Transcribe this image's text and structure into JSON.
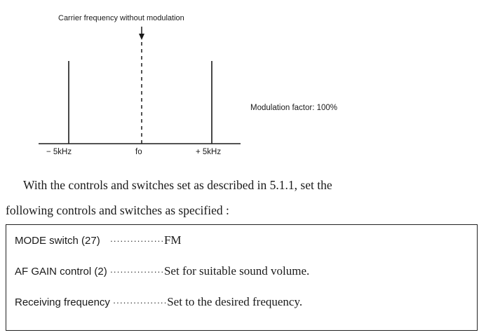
{
  "figure": {
    "carrier_label": "Carrier frequency without modulation",
    "modulation_label": "Modulation factor: 100%",
    "ticks": {
      "minus": "− 5kHz",
      "center": "fo",
      "plus": "+ 5kHz"
    }
  },
  "paragraph": {
    "line1": "With the controls and switches set as described in 5.1.1, set the",
    "line2": "following controls and switches as specified :"
  },
  "settings": [
    {
      "item": "MODE switch (27)",
      "leader": "················",
      "value": "FM"
    },
    {
      "item": "AF GAIN control (2)",
      "leader": "················",
      "value": "Set for suitable sound volume."
    },
    {
      "item": "Receiving frequency",
      "leader": "················",
      "value": "Set to the desired frequency."
    }
  ]
}
